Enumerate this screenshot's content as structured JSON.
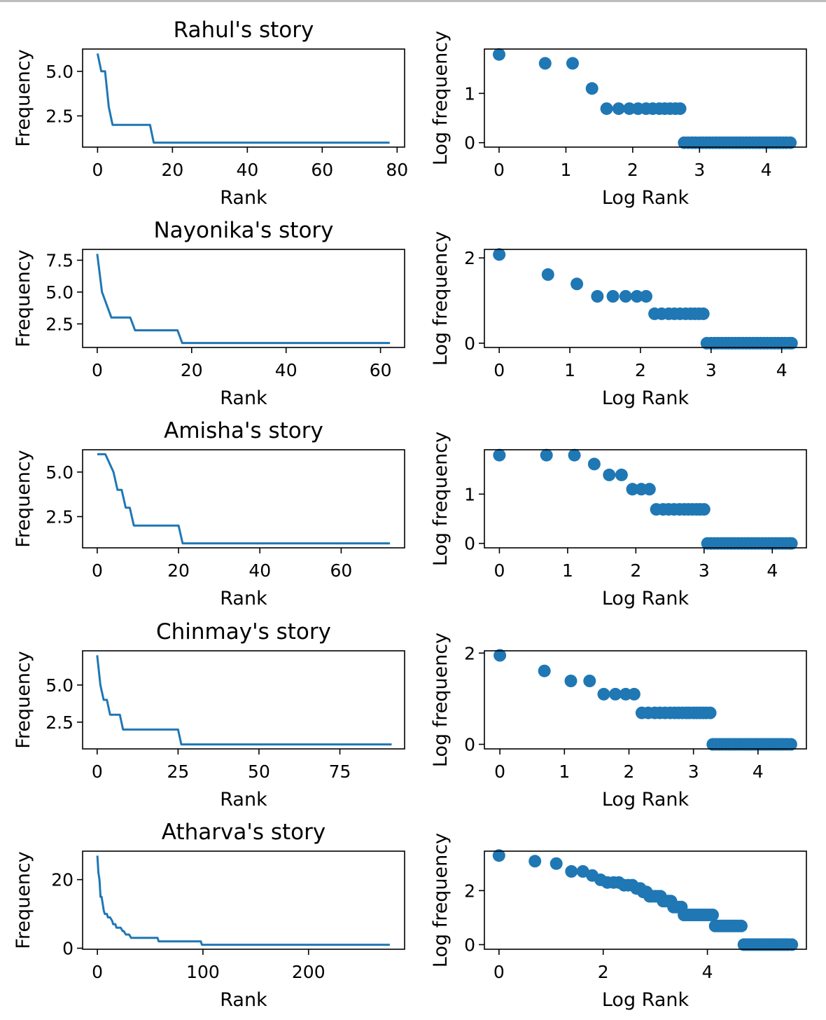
{
  "chart_data": [
    {
      "type": "line",
      "title": "Rahul's story",
      "xlabel": "Rank",
      "ylabel": "Frequency",
      "xlim": [
        -4,
        82
      ],
      "ylim": [
        0.75,
        6.25
      ],
      "xticks": [
        0,
        20,
        40,
        60,
        80
      ],
      "xtick_labels": [
        "0",
        "20",
        "40",
        "60",
        "80"
      ],
      "yticks": [
        2.5,
        5.0
      ],
      "ytick_labels": [
        "2.5",
        "5.0"
      ],
      "x": [
        0,
        1,
        2,
        3,
        4,
        14,
        15,
        78
      ],
      "y": [
        6,
        5,
        5,
        3,
        2,
        2,
        1,
        1
      ]
    },
    {
      "type": "scatter",
      "title": "",
      "xlabel": "Log Rank",
      "ylabel": "Log frequency",
      "xlim": [
        -0.22,
        4.6
      ],
      "ylim": [
        -0.09,
        1.9
      ],
      "xticks": [
        0,
        1,
        2,
        3,
        4
      ],
      "xtick_labels": [
        "0",
        "1",
        "2",
        "3",
        "4"
      ],
      "yticks": [
        0,
        1
      ],
      "ytick_labels": [
        "0",
        "1"
      ],
      "x": [
        0,
        0.69,
        1.1,
        1.39,
        1.61,
        1.79,
        1.95,
        2.08,
        2.2,
        2.3,
        2.4,
        2.48,
        2.56,
        2.64,
        2.71,
        2.77,
        2.83,
        2.89,
        2.94,
        3.0,
        3.05,
        3.1,
        3.15,
        3.2,
        3.25,
        3.3,
        3.35,
        3.4,
        3.45,
        3.5,
        3.55,
        3.6,
        3.65,
        3.7,
        3.75,
        3.8,
        3.85,
        3.9,
        3.95,
        4.0,
        4.05,
        4.1,
        4.15,
        4.2,
        4.25,
        4.3,
        4.36
      ],
      "y": [
        1.79,
        1.61,
        1.61,
        1.1,
        0.69,
        0.69,
        0.69,
        0.69,
        0.69,
        0.69,
        0.69,
        0.69,
        0.69,
        0.69,
        0.69,
        0,
        0,
        0,
        0,
        0,
        0,
        0,
        0,
        0,
        0,
        0,
        0,
        0,
        0,
        0,
        0,
        0,
        0,
        0,
        0,
        0,
        0,
        0,
        0,
        0,
        0,
        0,
        0,
        0,
        0,
        0,
        0
      ]
    },
    {
      "type": "line",
      "title": "Nayonika's story",
      "xlabel": "Rank",
      "ylabel": "Frequency",
      "xlim": [
        -3.1,
        65.1
      ],
      "ylim": [
        0.65,
        8.35
      ],
      "xticks": [
        0,
        20,
        40,
        60
      ],
      "xtick_labels": [
        "0",
        "20",
        "40",
        "60"
      ],
      "yticks": [
        2.5,
        5.0,
        7.5
      ],
      "ytick_labels": [
        "2.5",
        "5.0",
        "7.5"
      ],
      "x": [
        0,
        1,
        3,
        7,
        8,
        17,
        18,
        62
      ],
      "y": [
        8,
        5,
        3,
        3,
        2,
        2,
        1,
        1
      ]
    },
    {
      "type": "scatter",
      "title": "",
      "xlabel": "Log Rank",
      "ylabel": "Log frequency",
      "xlim": [
        -0.21,
        4.35
      ],
      "ylim": [
        -0.1,
        2.2
      ],
      "xticks": [
        0,
        1,
        2,
        3,
        4
      ],
      "xtick_labels": [
        "0",
        "1",
        "2",
        "3",
        "4"
      ],
      "yticks": [
        0,
        2
      ],
      "ytick_labels": [
        "0",
        "2"
      ],
      "x": [
        0,
        0.69,
        1.1,
        1.39,
        1.61,
        1.79,
        1.95,
        2.08,
        2.2,
        2.3,
        2.4,
        2.48,
        2.56,
        2.64,
        2.71,
        2.77,
        2.83,
        2.89,
        2.94,
        3.0,
        3.05,
        3.1,
        3.15,
        3.2,
        3.25,
        3.3,
        3.35,
        3.4,
        3.45,
        3.5,
        3.55,
        3.6,
        3.65,
        3.7,
        3.75,
        3.8,
        3.85,
        3.9,
        3.95,
        4.0,
        4.05,
        4.1,
        4.14
      ],
      "y": [
        2.08,
        1.61,
        1.39,
        1.1,
        1.1,
        1.1,
        1.1,
        1.1,
        0.69,
        0.69,
        0.69,
        0.69,
        0.69,
        0.69,
        0.69,
        0.69,
        0.69,
        0.69,
        0,
        0,
        0,
        0,
        0,
        0,
        0,
        0,
        0,
        0,
        0,
        0,
        0,
        0,
        0,
        0,
        0,
        0,
        0,
        0,
        0,
        0,
        0,
        0,
        0
      ]
    },
    {
      "type": "line",
      "title": "Amisha's story",
      "xlabel": "Rank",
      "ylabel": "Frequency",
      "xlim": [
        -3.6,
        75.6
      ],
      "ylim": [
        0.75,
        6.25
      ],
      "xticks": [
        0,
        20,
        40,
        60
      ],
      "xtick_labels": [
        "0",
        "20",
        "40",
        "60"
      ],
      "yticks": [
        2.5,
        5.0
      ],
      "ytick_labels": [
        "2.5",
        "5.0"
      ],
      "x": [
        0,
        2,
        4,
        5,
        6,
        7,
        8,
        9,
        20,
        21,
        72
      ],
      "y": [
        6,
        6,
        5,
        4,
        4,
        3,
        3,
        2,
        2,
        1,
        1
      ]
    },
    {
      "type": "scatter",
      "title": "",
      "xlabel": "Log Rank",
      "ylabel": "Log frequency",
      "xlim": [
        -0.22,
        4.5
      ],
      "ylim": [
        -0.09,
        1.9
      ],
      "xticks": [
        0,
        1,
        2,
        3,
        4
      ],
      "xtick_labels": [
        "0",
        "1",
        "2",
        "3",
        "4"
      ],
      "yticks": [
        0,
        1
      ],
      "ytick_labels": [
        "0",
        "1"
      ],
      "x": [
        0,
        0.69,
        1.1,
        1.39,
        1.61,
        1.79,
        1.95,
        2.08,
        2.2,
        2.3,
        2.4,
        2.48,
        2.56,
        2.64,
        2.71,
        2.77,
        2.83,
        2.89,
        2.94,
        3.0,
        3.05,
        3.1,
        3.15,
        3.2,
        3.25,
        3.3,
        3.35,
        3.4,
        3.45,
        3.5,
        3.55,
        3.6,
        3.65,
        3.7,
        3.75,
        3.8,
        3.85,
        3.9,
        3.95,
        4.0,
        4.05,
        4.1,
        4.15,
        4.2,
        4.25,
        4.28
      ],
      "y": [
        1.79,
        1.79,
        1.79,
        1.61,
        1.39,
        1.39,
        1.1,
        1.1,
        1.1,
        0.69,
        0.69,
        0.69,
        0.69,
        0.69,
        0.69,
        0.69,
        0.69,
        0.69,
        0.69,
        0.69,
        0,
        0,
        0,
        0,
        0,
        0,
        0,
        0,
        0,
        0,
        0,
        0,
        0,
        0,
        0,
        0,
        0,
        0,
        0,
        0,
        0,
        0,
        0,
        0,
        0,
        0
      ]
    },
    {
      "type": "line",
      "title": "Chinmay's story",
      "xlabel": "Rank",
      "ylabel": "Frequency",
      "xlim": [
        -4.5,
        95.0
      ],
      "ylim": [
        0.7,
        7.3
      ],
      "xticks": [
        0,
        25,
        50,
        75
      ],
      "xtick_labels": [
        "0",
        "25",
        "50",
        "75"
      ],
      "yticks": [
        2.5,
        5.0
      ],
      "ytick_labels": [
        "2.5",
        "5.0"
      ],
      "x": [
        0,
        1,
        2,
        3,
        4,
        7,
        8,
        25,
        26,
        91
      ],
      "y": [
        7,
        5,
        4,
        4,
        3,
        3,
        2,
        2,
        1,
        1
      ]
    },
    {
      "type": "scatter",
      "title": "",
      "xlabel": "Log Rank",
      "ylabel": "Log frequency",
      "xlim": [
        -0.24,
        4.75
      ],
      "ylim": [
        -0.1,
        2.05
      ],
      "xticks": [
        0,
        1,
        2,
        3,
        4
      ],
      "xtick_labels": [
        "0",
        "1",
        "2",
        "3",
        "4"
      ],
      "yticks": [
        0,
        2
      ],
      "ytick_labels": [
        "0",
        "2"
      ],
      "x": [
        0,
        0.69,
        1.1,
        1.39,
        1.61,
        1.79,
        1.95,
        2.08,
        2.2,
        2.3,
        2.4,
        2.48,
        2.56,
        2.64,
        2.71,
        2.77,
        2.83,
        2.89,
        2.94,
        3.0,
        3.05,
        3.1,
        3.15,
        3.2,
        3.26,
        3.3,
        3.35,
        3.4,
        3.45,
        3.5,
        3.55,
        3.6,
        3.65,
        3.7,
        3.75,
        3.8,
        3.85,
        3.9,
        3.95,
        4.0,
        4.05,
        4.1,
        4.15,
        4.2,
        4.25,
        4.3,
        4.35,
        4.4,
        4.45,
        4.51
      ],
      "y": [
        1.95,
        1.61,
        1.39,
        1.39,
        1.1,
        1.1,
        1.1,
        1.1,
        0.69,
        0.69,
        0.69,
        0.69,
        0.69,
        0.69,
        0.69,
        0.69,
        0.69,
        0.69,
        0.69,
        0.69,
        0.69,
        0.69,
        0.69,
        0.69,
        0.69,
        0,
        0,
        0,
        0,
        0,
        0,
        0,
        0,
        0,
        0,
        0,
        0,
        0,
        0,
        0,
        0,
        0,
        0,
        0,
        0,
        0,
        0,
        0,
        0,
        0
      ]
    },
    {
      "type": "line",
      "title": "Atharva's story",
      "xlabel": "Rank",
      "ylabel": "Frequency",
      "xlim": [
        -14,
        291
      ],
      "ylim": [
        -0.3,
        28.3
      ],
      "xticks": [
        0,
        100,
        200
      ],
      "xtick_labels": [
        "0",
        "100",
        "200"
      ],
      "yticks": [
        0,
        20
      ],
      "ytick_labels": [
        "0",
        "20"
      ],
      "x": [
        0,
        1,
        2,
        3,
        4,
        5,
        6,
        7,
        8,
        9,
        10,
        12,
        14,
        15,
        17,
        18,
        20,
        22,
        24,
        25,
        27,
        30,
        32,
        33,
        38,
        57,
        58,
        98,
        99,
        277
      ],
      "y": [
        27,
        22,
        20,
        15,
        15,
        13,
        11,
        10,
        10,
        10,
        9,
        9,
        8,
        7,
        7,
        6,
        6,
        6,
        5,
        5,
        4,
        4,
        3,
        3,
        3,
        3,
        2,
        2,
        1,
        1
      ]
    },
    {
      "type": "scatter",
      "title": "",
      "xlabel": "Log Rank",
      "ylabel": "Log frequency",
      "xlim": [
        -0.28,
        5.9
      ],
      "ylim": [
        -0.17,
        3.46
      ],
      "xticks": [
        0,
        2,
        4
      ],
      "xtick_labels": [
        "0",
        "2",
        "4"
      ],
      "yticks": [
        0,
        2
      ],
      "ytick_labels": [
        "0",
        "2"
      ],
      "x": [
        0,
        0.69,
        1.1,
        1.39,
        1.61,
        1.79,
        1.95,
        2.08,
        2.2,
        2.3,
        2.4,
        2.48,
        2.56,
        2.64,
        2.71,
        2.77,
        2.83,
        2.89,
        2.94,
        3.0,
        3.05,
        3.1,
        3.15,
        3.2,
        3.25,
        3.3,
        3.35,
        3.4,
        3.45,
        3.5,
        3.55,
        3.6,
        3.65,
        3.7,
        3.75,
        3.8,
        3.85,
        3.9,
        3.95,
        4.0,
        4.05,
        4.1,
        4.15,
        4.2,
        4.25,
        4.3,
        4.35,
        4.4,
        4.45,
        4.5,
        4.55,
        4.6,
        4.65,
        4.7,
        4.75,
        4.8,
        4.85,
        4.9,
        4.95,
        5.0,
        5.05,
        5.1,
        5.15,
        5.2,
        5.25,
        5.3,
        5.35,
        5.4,
        5.45,
        5.5,
        5.55,
        5.62
      ],
      "y": [
        3.3,
        3.09,
        3.0,
        2.71,
        2.71,
        2.56,
        2.4,
        2.3,
        2.3,
        2.3,
        2.2,
        2.2,
        2.2,
        2.08,
        2.08,
        1.95,
        1.95,
        1.79,
        1.79,
        1.79,
        1.79,
        1.79,
        1.61,
        1.61,
        1.61,
        1.61,
        1.39,
        1.39,
        1.39,
        1.39,
        1.1,
        1.1,
        1.1,
        1.1,
        1.1,
        1.1,
        1.1,
        1.1,
        1.1,
        1.1,
        1.1,
        1.1,
        0.69,
        0.69,
        0.69,
        0.69,
        0.69,
        0.69,
        0.69,
        0.69,
        0.69,
        0.69,
        0.69,
        0,
        0,
        0,
        0,
        0,
        0,
        0,
        0,
        0,
        0,
        0,
        0,
        0,
        0,
        0,
        0,
        0,
        0,
        0
      ]
    }
  ],
  "colors": {
    "series": "#1f77b4"
  }
}
